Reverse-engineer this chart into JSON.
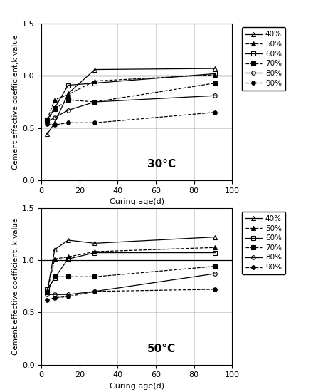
{
  "x": [
    3,
    7,
    14,
    28,
    91
  ],
  "chart30": {
    "40": [
      0.44,
      0.55,
      0.83,
      1.06,
      1.07
    ],
    "50": [
      0.58,
      0.77,
      0.82,
      0.95,
      1.01
    ],
    "60": [
      0.58,
      0.69,
      0.91,
      0.93,
      1.02
    ],
    "70": [
      0.57,
      0.68,
      0.77,
      0.75,
      0.93
    ],
    "80": [
      0.56,
      0.6,
      0.67,
      0.75,
      0.81
    ],
    "90": [
      0.54,
      0.53,
      0.55,
      0.55,
      0.65
    ]
  },
  "chart50": {
    "40": [
      0.69,
      1.1,
      1.19,
      1.16,
      1.22
    ],
    "50": [
      0.7,
      1.01,
      1.03,
      1.08,
      1.12
    ],
    "60": [
      0.72,
      0.83,
      1.01,
      1.07,
      1.07
    ],
    "70": [
      0.69,
      0.84,
      0.84,
      0.84,
      0.94
    ],
    "80": [
      0.67,
      0.67,
      0.67,
      0.7,
      0.87
    ],
    "90": [
      0.62,
      0.64,
      0.65,
      0.7,
      0.72
    ]
  },
  "series_styles": {
    "40": {
      "label": "40%",
      "linestyle": "-",
      "marker": "^",
      "fillstyle": "none",
      "color": "black"
    },
    "50": {
      "label": "50%",
      "linestyle": "--",
      "marker": "^",
      "fillstyle": "full",
      "color": "black"
    },
    "60": {
      "label": "60%",
      "linestyle": "-",
      "marker": "s",
      "fillstyle": "none",
      "color": "black"
    },
    "70": {
      "label": "70%",
      "linestyle": "--",
      "marker": "s",
      "fillstyle": "full",
      "color": "black"
    },
    "80": {
      "label": "80%",
      "linestyle": "-",
      "marker": "o",
      "fillstyle": "none",
      "color": "black"
    },
    "90": {
      "label": "90%",
      "linestyle": "--",
      "marker": "o",
      "fillstyle": "full",
      "color": "black"
    }
  },
  "xlabel": "Curing age(d)",
  "ylabel30": "Cement effective coefficient,k value",
  "ylabel50": "Cement effective coefficient, k value",
  "xlim": [
    0,
    100
  ],
  "ylim": [
    0,
    1.5
  ],
  "yticks": [
    0,
    0.5,
    1.0,
    1.5
  ],
  "xticks": [
    0,
    20,
    40,
    60,
    80,
    100
  ],
  "label30": "30°C",
  "label50": "50°C",
  "background_color": "#ffffff",
  "figsize": [
    4.47,
    5.5
  ],
  "dpi": 100
}
